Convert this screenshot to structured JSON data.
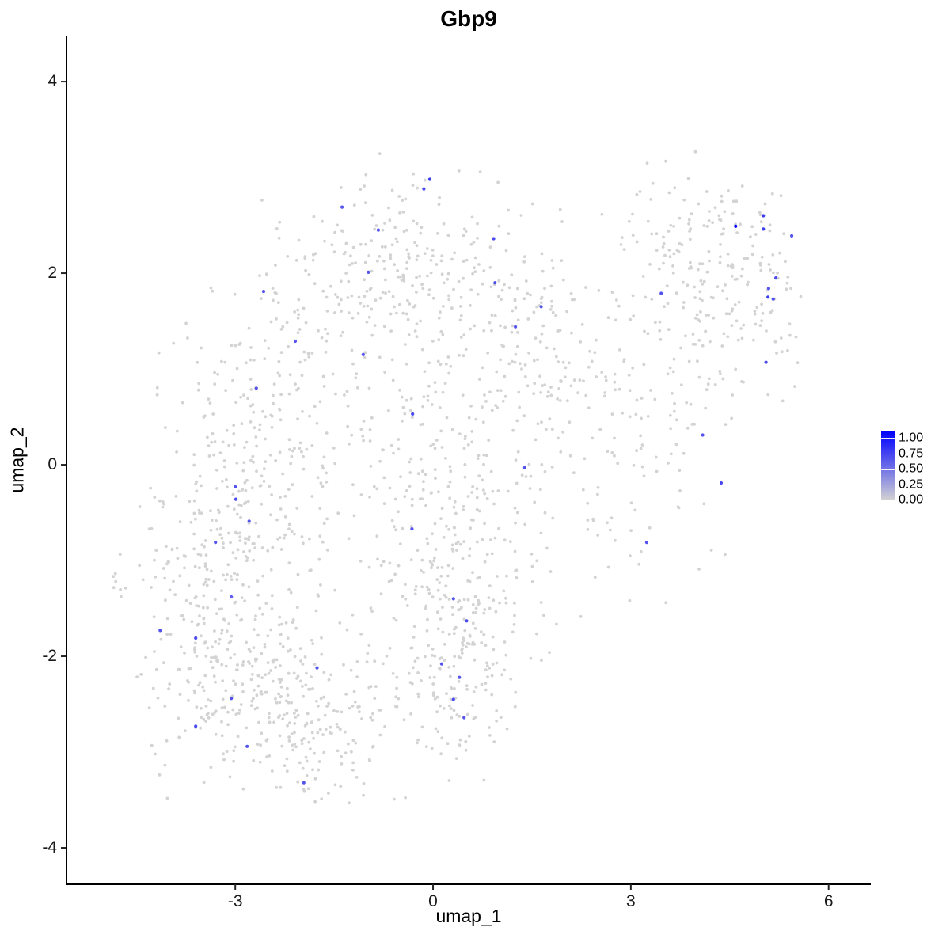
{
  "chart_data": {
    "type": "scatter",
    "title": "Gbp9",
    "xlabel": "umap_1",
    "ylabel": "umap_2",
    "xlim": [
      -5.56,
      6.64
    ],
    "ylim": [
      -4.38,
      4.48
    ],
    "x_ticks": [
      -3,
      0,
      3,
      6
    ],
    "y_ticks": [
      -4,
      -2,
      0,
      2,
      4
    ],
    "grid": false,
    "legend_position": "right",
    "colorscale": {
      "low_color": "#D3D3D3",
      "high_color": "#0000FF",
      "limits": [
        0.0,
        1.0
      ],
      "breaks": [
        "1.00",
        "0.75",
        "0.50",
        "0.25",
        "0.00"
      ],
      "break_values": [
        1.0,
        0.75,
        0.5,
        0.25,
        0.0
      ]
    },
    "expressing_cells": [
      {
        "x": -3.0,
        "y": -0.23,
        "v": 0.6
      },
      {
        "x": -2.99,
        "y": -0.36,
        "v": 0.65
      },
      {
        "x": -2.79,
        "y": -0.59,
        "v": 0.6
      },
      {
        "x": -3.3,
        "y": -0.81,
        "v": 0.6
      },
      {
        "x": -3.06,
        "y": -1.38,
        "v": 0.55
      },
      {
        "x": -4.14,
        "y": -1.73,
        "v": 0.6
      },
      {
        "x": -3.6,
        "y": -1.81,
        "v": 0.65
      },
      {
        "x": -1.76,
        "y": -2.12,
        "v": 0.6
      },
      {
        "x": -3.06,
        "y": -2.44,
        "v": 0.6
      },
      {
        "x": -3.6,
        "y": -2.73,
        "v": 0.65
      },
      {
        "x": -2.82,
        "y": -2.94,
        "v": 0.6
      },
      {
        "x": -1.96,
        "y": -3.32,
        "v": 0.6
      },
      {
        "x": -0.05,
        "y": 2.98,
        "v": 0.7
      },
      {
        "x": -0.14,
        "y": 2.88,
        "v": 0.65
      },
      {
        "x": -1.38,
        "y": 2.69,
        "v": 0.6
      },
      {
        "x": -0.83,
        "y": 2.45,
        "v": 0.6
      },
      {
        "x": 0.92,
        "y": 2.36,
        "v": 0.65
      },
      {
        "x": -0.98,
        "y": 2.01,
        "v": 0.6
      },
      {
        "x": 0.94,
        "y": 1.9,
        "v": 0.65
      },
      {
        "x": 1.64,
        "y": 1.65,
        "v": 0.6
      },
      {
        "x": 1.25,
        "y": 1.44,
        "v": 0.6
      },
      {
        "x": -1.06,
        "y": 1.15,
        "v": 0.6
      },
      {
        "x": -0.31,
        "y": 0.53,
        "v": 0.65
      },
      {
        "x": -2.57,
        "y": 1.81,
        "v": 0.6
      },
      {
        "x": -2.09,
        "y": 1.29,
        "v": 0.6
      },
      {
        "x": -2.68,
        "y": 0.8,
        "v": 0.6
      },
      {
        "x": 5.01,
        "y": 2.6,
        "v": 0.7
      },
      {
        "x": 4.59,
        "y": 2.49,
        "v": 1.0
      },
      {
        "x": 5.01,
        "y": 2.46,
        "v": 0.7
      },
      {
        "x": 5.44,
        "y": 2.39,
        "v": 0.6
      },
      {
        "x": 5.2,
        "y": 1.95,
        "v": 0.65
      },
      {
        "x": 5.09,
        "y": 1.84,
        "v": 0.6
      },
      {
        "x": 5.08,
        "y": 1.75,
        "v": 0.7
      },
      {
        "x": 5.16,
        "y": 1.73,
        "v": 0.65
      },
      {
        "x": 3.46,
        "y": 1.79,
        "v": 0.6
      },
      {
        "x": 5.05,
        "y": 1.07,
        "v": 0.65
      },
      {
        "x": 4.09,
        "y": 0.31,
        "v": 0.6
      },
      {
        "x": 4.37,
        "y": -0.19,
        "v": 0.65
      },
      {
        "x": 3.24,
        "y": -0.81,
        "v": 0.6
      },
      {
        "x": 1.39,
        "y": -0.03,
        "v": 0.6
      },
      {
        "x": -0.32,
        "y": -0.67,
        "v": 0.6
      },
      {
        "x": 0.31,
        "y": -1.4,
        "v": 0.6
      },
      {
        "x": 0.51,
        "y": -1.63,
        "v": 0.65
      },
      {
        "x": 0.13,
        "y": -2.08,
        "v": 0.6
      },
      {
        "x": 0.4,
        "y": -2.22,
        "v": 0.6
      },
      {
        "x": 0.31,
        "y": -2.45,
        "v": 0.65
      },
      {
        "x": 0.47,
        "y": -2.64,
        "v": 0.6
      }
    ],
    "background_cells": {
      "value": 0,
      "note": "approx. 2000 zero-expression cells; density approximated by gaussian clusters [n,cx,cy,sx,sy]",
      "clusters": [
        [
          280,
          -2.9,
          -2.3,
          0.75,
          0.55
        ],
        [
          120,
          -1.6,
          -2.65,
          0.55,
          0.42
        ],
        [
          300,
          -2.6,
          0.2,
          0.75,
          0.95
        ],
        [
          100,
          -3.4,
          -1.05,
          0.5,
          0.45
        ],
        [
          260,
          -0.6,
          2.0,
          0.95,
          0.55
        ],
        [
          300,
          0.1,
          -0.5,
          0.7,
          1.05
        ],
        [
          120,
          0.3,
          -2.1,
          0.45,
          0.55
        ],
        [
          160,
          2.7,
          0.3,
          0.95,
          0.85
        ],
        [
          240,
          4.3,
          1.9,
          0.75,
          0.65
        ],
        [
          120,
          1.5,
          1.3,
          0.75,
          0.65
        ],
        [
          40,
          1.0,
          -1.6,
          0.6,
          0.5
        ],
        [
          8,
          -4.72,
          -1.2,
          0.1,
          0.15
        ]
      ]
    }
  }
}
